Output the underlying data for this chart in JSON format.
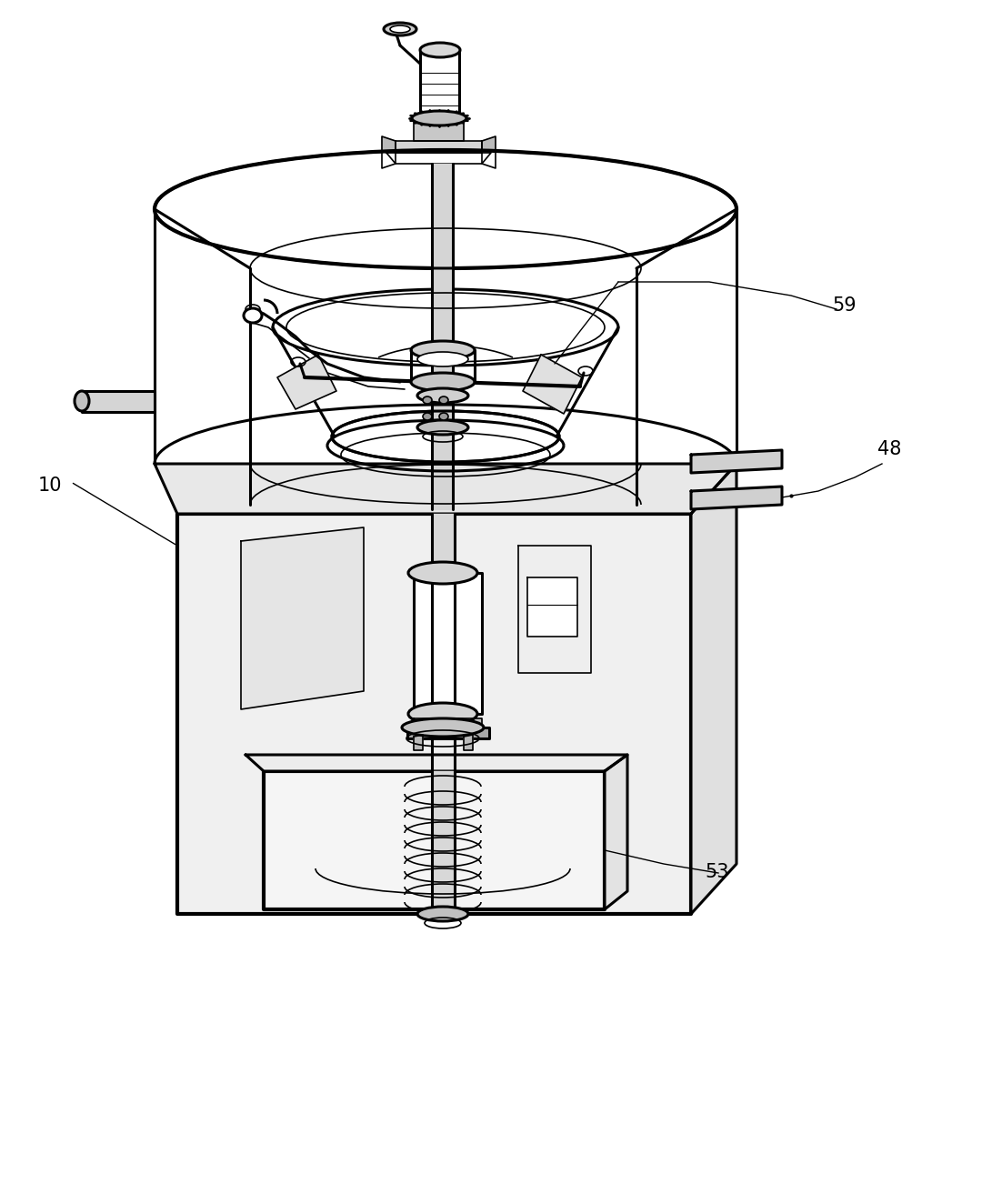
{
  "bg_color": "#ffffff",
  "lc": "#000000",
  "lw": 1.2,
  "lw2": 2.2,
  "lw3": 3.0,
  "fig_width": 10.91,
  "fig_height": 13.13,
  "dpi": 100,
  "label_fontsize": 15
}
